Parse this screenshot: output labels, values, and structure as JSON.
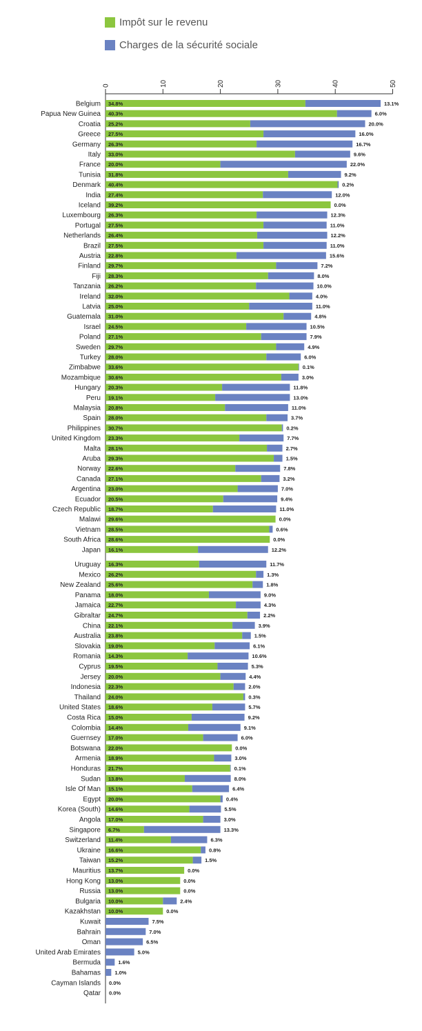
{
  "colors": {
    "income_tax": "#8cc63f",
    "social_security": "#6a82c2",
    "axis": "#333333"
  },
  "legend": {
    "income_tax": "Impôt sur le revenu",
    "social_security": "Charges de la sécurité sociale"
  },
  "chart_data": {
    "type": "bar",
    "orientation": "horizontal",
    "stacked": true,
    "xlim": [
      0,
      50
    ],
    "xticks": [
      0,
      10,
      20,
      30,
      40,
      50
    ],
    "grid": false,
    "legend_position": "top-left",
    "title": "",
    "xlabel": "",
    "ylabel": "",
    "series": [
      {
        "name": "Impôt sur le revenu",
        "color": "#8cc63f"
      },
      {
        "name": "Charges de la sécurité sociale",
        "color": "#6a82c2"
      }
    ],
    "rows": [
      [
        "Belgium",
        34.8,
        13.1
      ],
      [
        "Papua New Guinea",
        40.3,
        6.0
      ],
      [
        "Croatia",
        25.2,
        20.0
      ],
      [
        "Greece",
        27.5,
        16.0
      ],
      [
        "Germany",
        26.3,
        16.7
      ],
      [
        "Italy",
        33.0,
        9.6
      ],
      [
        "France",
        20.0,
        22.0
      ],
      [
        "Tunisia",
        31.8,
        9.2
      ],
      [
        "Denmark",
        40.4,
        0.2
      ],
      [
        "India",
        27.4,
        12.0
      ],
      [
        "Iceland",
        39.2,
        0.0
      ],
      [
        "Luxembourg",
        26.3,
        12.3
      ],
      [
        "Portugal",
        27.5,
        11.0
      ],
      [
        "Netherlands",
        26.4,
        12.2
      ],
      [
        "Brazil",
        27.5,
        11.0
      ],
      [
        "Austria",
        22.8,
        15.6
      ],
      [
        "Finland",
        29.7,
        7.2
      ],
      [
        "Fiji",
        28.3,
        8.0
      ],
      [
        "Tanzania",
        26.2,
        10.0
      ],
      [
        "Ireland",
        32.0,
        4.0
      ],
      [
        "Latvia",
        25.0,
        11.0
      ],
      [
        "Guatemala",
        31.0,
        4.8
      ],
      [
        "Israel",
        24.5,
        10.5
      ],
      [
        "Poland",
        27.1,
        7.9
      ],
      [
        "Sweden",
        29.7,
        4.9
      ],
      [
        "Turkey",
        28.0,
        6.0
      ],
      [
        "Zimbabwe",
        33.6,
        0.1
      ],
      [
        "Mozambique",
        30.6,
        3.0
      ],
      [
        "Hungary",
        20.3,
        11.8
      ],
      [
        "Peru",
        19.1,
        13.0
      ],
      [
        "Malaysia",
        20.8,
        11.0
      ],
      [
        "Spain",
        28.0,
        3.7
      ],
      [
        "Philippines",
        30.7,
        0.2
      ],
      [
        "United Kingdom",
        23.3,
        7.7
      ],
      [
        "Malta",
        28.1,
        2.7
      ],
      [
        "Aruba",
        29.3,
        1.5
      ],
      [
        "Norway",
        22.6,
        7.8
      ],
      [
        "Canada",
        27.1,
        3.2
      ],
      [
        "Argentina",
        23.0,
        7.0
      ],
      [
        "Ecuador",
        20.5,
        9.4
      ],
      [
        "Czech Republic",
        18.7,
        11.0
      ],
      [
        "Malawi",
        29.6,
        0.0
      ],
      [
        "Vietnam",
        28.5,
        0.6
      ],
      [
        "South Africa",
        28.6,
        0.0
      ],
      [
        "Japan",
        16.1,
        12.2
      ],
      [
        "Uruguay",
        16.3,
        11.7
      ],
      [
        "Mexico",
        26.2,
        1.3
      ],
      [
        "New Zealand",
        25.6,
        1.8
      ],
      [
        "Panama",
        18.0,
        9.0
      ],
      [
        "Jamaica",
        22.7,
        4.3
      ],
      [
        "Gibraltar",
        24.7,
        2.2
      ],
      [
        "China",
        22.1,
        3.9
      ],
      [
        "Australia",
        23.8,
        1.5
      ],
      [
        "Slovakia",
        19.0,
        6.1
      ],
      [
        "Romania",
        14.3,
        10.6
      ],
      [
        "Cyprus",
        19.5,
        5.3
      ],
      [
        "Jersey",
        20.0,
        4.4
      ],
      [
        "Indonesia",
        22.3,
        2.0
      ],
      [
        "Thailand",
        24.0,
        0.3
      ],
      [
        "United States",
        18.6,
        5.7
      ],
      [
        "Costa Rica",
        15.0,
        9.2
      ],
      [
        "Colombia",
        14.4,
        9.1
      ],
      [
        "Guernsey",
        17.0,
        6.0
      ],
      [
        "Botswana",
        22.0,
        0.0
      ],
      [
        "Armenia",
        18.9,
        3.0
      ],
      [
        "Honduras",
        21.7,
        0.1
      ],
      [
        "Sudan",
        13.8,
        8.0
      ],
      [
        "Isle Of Man",
        15.1,
        6.4
      ],
      [
        "Egypt",
        20.0,
        0.4
      ],
      [
        "Korea (South)",
        14.6,
        5.5
      ],
      [
        "Angola",
        17.0,
        3.0
      ],
      [
        "Singapore",
        6.7,
        13.3
      ],
      [
        "Switzerland",
        11.4,
        6.3
      ],
      [
        "Ukraine",
        16.6,
        0.8
      ],
      [
        "Taiwan",
        15.2,
        1.5
      ],
      [
        "Mauritius",
        13.7,
        0.0
      ],
      [
        "Hong Kong",
        13.0,
        0.0
      ],
      [
        "Russia",
        13.0,
        0.0
      ],
      [
        "Bulgaria",
        10.0,
        2.4
      ],
      [
        "Kazakhstan",
        10.0,
        0.0
      ],
      [
        "Kuwait",
        null,
        7.5
      ],
      [
        "Bahrain",
        null,
        7.0
      ],
      [
        "Oman",
        null,
        6.5
      ],
      [
        "United Arab Emirates",
        null,
        5.0
      ],
      [
        "Bermuda",
        null,
        1.6
      ],
      [
        "Bahamas",
        null,
        1.0
      ],
      [
        "Cayman Islands",
        null,
        0.0
      ],
      [
        "Qatar",
        null,
        0.0
      ]
    ]
  }
}
